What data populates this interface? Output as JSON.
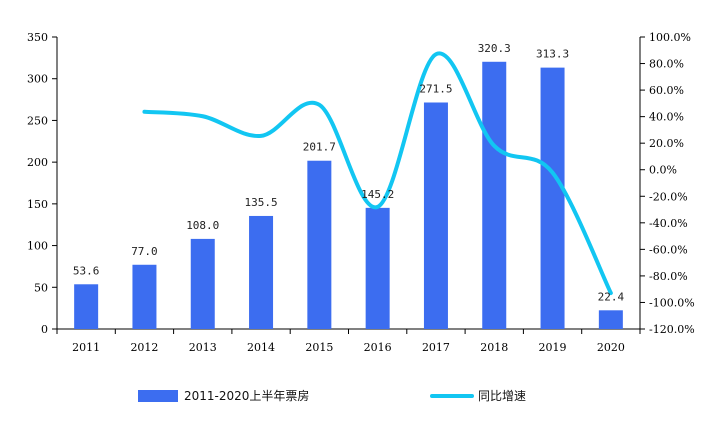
{
  "chart_data": {
    "type": "bar",
    "categories": [
      "2011",
      "2012",
      "2013",
      "2014",
      "2015",
      "2016",
      "2017",
      "2018",
      "2019",
      "2020"
    ],
    "series": [
      {
        "name": "2011-2020上半年票房",
        "type": "bar",
        "axis": "left",
        "color": "#3c6df0",
        "values": [
          53.6,
          77.0,
          108.0,
          135.5,
          201.7,
          145.2,
          271.5,
          320.3,
          313.3,
          22.4
        ],
        "labels": [
          "53.6",
          "77.0",
          "108.0",
          "135.5",
          "201.7",
          "145.2",
          "271.5",
          "320.3",
          "313.3",
          "22.4"
        ]
      },
      {
        "name": "同比增速",
        "type": "line",
        "axis": "right",
        "color": "#12c6f2",
        "values": [
          null,
          43.7,
          40.3,
          25.5,
          48.9,
          -28.0,
          87.0,
          18.0,
          -2.2,
          -92.9
        ]
      }
    ],
    "ylim_left": [
      0,
      350
    ],
    "yticks_left": [
      0,
      50,
      100,
      150,
      200,
      250,
      300,
      350
    ],
    "ylim_right": [
      -120,
      100
    ],
    "yticks_right": [
      "100.0%",
      "80.0%",
      "60.0%",
      "40.0%",
      "20.0%",
      "0.0%",
      "-20.0%",
      "-40.0%",
      "-60.0%",
      "-80.0%",
      "-100.0%",
      "-120.0%"
    ],
    "title": "",
    "xlabel": "",
    "ylabel": "",
    "legend_position": "bottom",
    "grid": false
  }
}
